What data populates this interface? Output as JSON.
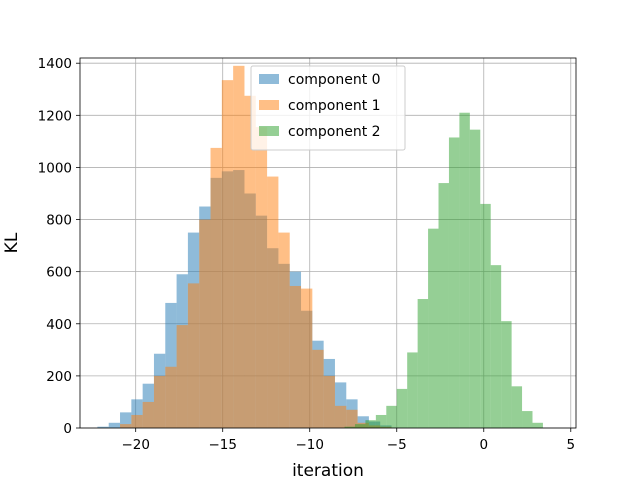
{
  "chart_data": {
    "type": "histogram",
    "xlabel": "iteration",
    "ylabel": "KL",
    "xlim": [
      -23.2,
      5.3
    ],
    "ylim": [
      0,
      1420
    ],
    "xticks": [
      -20,
      -15,
      -10,
      -5,
      0,
      5
    ],
    "xtick_labels": [
      "−20",
      "−15",
      "−10",
      "−5",
      "0",
      "5"
    ],
    "yticks": [
      0,
      200,
      400,
      600,
      800,
      1000,
      1200,
      1400
    ],
    "ytick_labels": [
      "0",
      "200",
      "400",
      "600",
      "800",
      "1000",
      "1200",
      "1400"
    ],
    "grid": true,
    "legend_placement": "upper-center",
    "alpha": 0.5,
    "series": [
      {
        "name": "component 0",
        "color": "#1f77b4",
        "bin_edges": [
          -22.2,
          -21.55,
          -20.9,
          -20.25,
          -19.6,
          -18.95,
          -18.3,
          -17.65,
          -17.0,
          -16.35,
          -15.7,
          -15.05,
          -14.4,
          -13.75,
          -13.1,
          -12.45,
          -11.8,
          -11.15,
          -10.5,
          -9.85,
          -9.2,
          -8.55,
          -7.9,
          -7.25,
          -6.6,
          -5.95,
          -5.3
        ],
        "counts": [
          5,
          20,
          60,
          110,
          170,
          285,
          480,
          590,
          750,
          850,
          960,
          985,
          990,
          900,
          815,
          690,
          630,
          600,
          450,
          335,
          265,
          175,
          110,
          45,
          25,
          10
        ]
      },
      {
        "name": "component 1",
        "color": "#ff7f0e",
        "bin_edges": [
          -20.9,
          -20.25,
          -19.6,
          -18.95,
          -18.3,
          -17.65,
          -17.0,
          -16.35,
          -15.7,
          -15.05,
          -14.4,
          -13.75,
          -13.1,
          -12.45,
          -11.8,
          -11.15,
          -10.5,
          -9.85,
          -9.2,
          -8.55,
          -7.9,
          -7.25,
          -6.6,
          -5.95,
          -5.3
        ],
        "counts": [
          15,
          50,
          100,
          200,
          235,
          395,
          555,
          800,
          1075,
          1335,
          1390,
          1275,
          1155,
          965,
          750,
          545,
          535,
          300,
          200,
          85,
          70,
          20,
          10,
          5
        ]
      },
      {
        "name": "component 2",
        "color": "#2ca02c",
        "bin_edges": [
          -8.0,
          -7.4,
          -6.8,
          -6.2,
          -5.6,
          -5.0,
          -4.4,
          -3.8,
          -3.2,
          -2.6,
          -2.0,
          -1.4,
          -0.8,
          -0.2,
          0.4,
          1.0,
          1.6,
          2.2,
          2.8,
          3.4
        ],
        "counts": [
          5,
          15,
          30,
          50,
          85,
          150,
          290,
          495,
          765,
          940,
          1115,
          1210,
          1145,
          860,
          625,
          410,
          160,
          65,
          20
        ]
      }
    ]
  }
}
